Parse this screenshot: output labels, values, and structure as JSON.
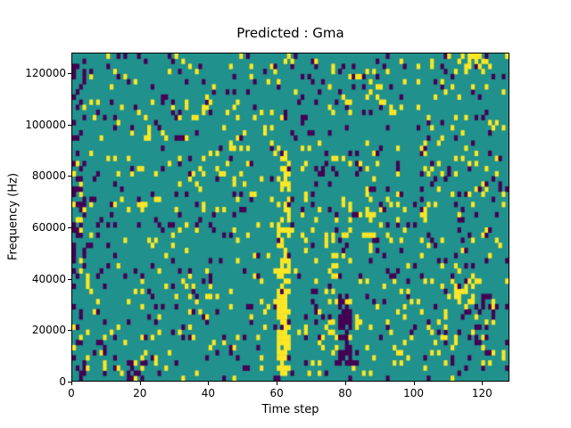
{
  "chart_data": {
    "type": "heatmap",
    "title": "Predicted : Gma",
    "xlabel": "Time step",
    "ylabel": "Frequency (Hz)",
    "x_range": [
      0,
      128
    ],
    "y_range": [
      0,
      128000
    ],
    "x_ticks": [
      0,
      20,
      40,
      60,
      80,
      100,
      120
    ],
    "y_ticks": [
      0,
      20000,
      40000,
      60000,
      80000,
      100000,
      120000
    ],
    "grid_cols": 128,
    "grid_rows": 64,
    "cell_values": [
      0,
      0.5,
      1
    ],
    "colors": {
      "background": "#20918c",
      "low": "#440154",
      "high": "#fde725"
    },
    "legend": "off",
    "grid": "off",
    "pattern": {
      "description": "mostly mid-value teal field with sparse scattered low (dark purple) and high (yellow) cells",
      "seed": 42,
      "p_low": 0.055,
      "p_high": 0.055,
      "features": [
        {
          "x0": 60,
          "x1": 64,
          "y0": 2000,
          "y1": 92000,
          "value": "high",
          "density": 0.45
        },
        {
          "x0": 60,
          "x1": 63,
          "y0": 8000,
          "y1": 36000,
          "value": "high",
          "density": 0.8
        },
        {
          "x0": 74,
          "x1": 78,
          "y0": 16000,
          "y1": 64000,
          "value": "high",
          "density": 0.3
        },
        {
          "x0": 78,
          "x1": 82,
          "y0": 6000,
          "y1": 34000,
          "value": "low",
          "density": 0.65
        },
        {
          "x0": 79,
          "x1": 82,
          "y0": 46000,
          "y1": 72000,
          "value": "high",
          "density": 0.35
        },
        {
          "x0": 0,
          "x1": 4,
          "y0": 0,
          "y1": 128000,
          "value": "low",
          "density": 0.22
        },
        {
          "x0": 0,
          "x1": 3,
          "y0": 40000,
          "y1": 80000,
          "value": "low",
          "density": 0.3
        },
        {
          "x0": 86,
          "x1": 89,
          "y0": 56000,
          "y1": 84000,
          "value": "high",
          "density": 0.3
        },
        {
          "x0": 16,
          "x1": 20,
          "y0": 0,
          "y1": 8000,
          "value": "low",
          "density": 0.5
        },
        {
          "x0": 118,
          "x1": 124,
          "y0": 20000,
          "y1": 34000,
          "value": "low",
          "density": 0.4
        },
        {
          "x0": 112,
          "x1": 118,
          "y0": 30000,
          "y1": 42000,
          "value": "high",
          "density": 0.35
        },
        {
          "x0": 114,
          "x1": 122,
          "y0": 120000,
          "y1": 128000,
          "value": "high",
          "density": 0.3
        }
      ]
    }
  }
}
